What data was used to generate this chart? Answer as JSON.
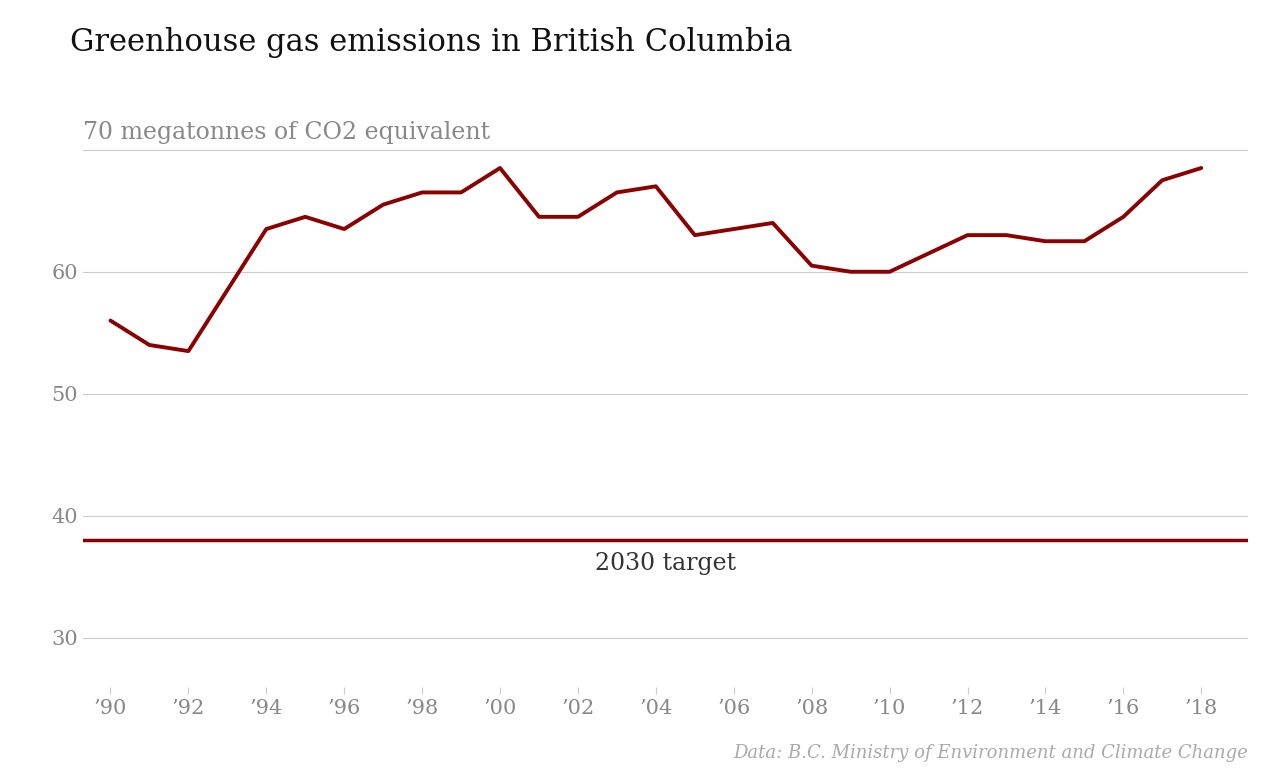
{
  "title": "Greenhouse gas emissions in British Columbia",
  "ylabel": "70 megatonnes of CO2 equivalent",
  "source": "Data: B.C. Ministry of Environment and Climate Change",
  "years": [
    1990,
    1991,
    1992,
    1993,
    1994,
    1995,
    1996,
    1997,
    1998,
    1999,
    2000,
    2001,
    2002,
    2003,
    2004,
    2005,
    2006,
    2007,
    2008,
    2009,
    2010,
    2011,
    2012,
    2013,
    2014,
    2015,
    2016,
    2017,
    2018
  ],
  "values": [
    56.0,
    54.0,
    53.5,
    58.5,
    63.5,
    64.5,
    63.5,
    65.5,
    66.5,
    66.5,
    68.5,
    64.5,
    64.5,
    66.5,
    67.0,
    63.0,
    63.5,
    64.0,
    60.5,
    60.0,
    60.0,
    61.5,
    63.0,
    63.0,
    62.5,
    62.5,
    64.5,
    67.5,
    68.5
  ],
  "target_value": 38.0,
  "target_label": "2030 target",
  "line_color": "#8b0000",
  "target_color": "#8b0000",
  "background_color": "#ffffff",
  "grid_color": "#cccccc",
  "title_fontsize": 22,
  "ylabel_fontsize": 17,
  "tick_fontsize": 15,
  "source_fontsize": 13,
  "target_label_fontsize": 17,
  "yticks": [
    30,
    40,
    50,
    60
  ],
  "ylim": [
    26,
    74
  ],
  "xlim": [
    1989.3,
    2019.2
  ]
}
